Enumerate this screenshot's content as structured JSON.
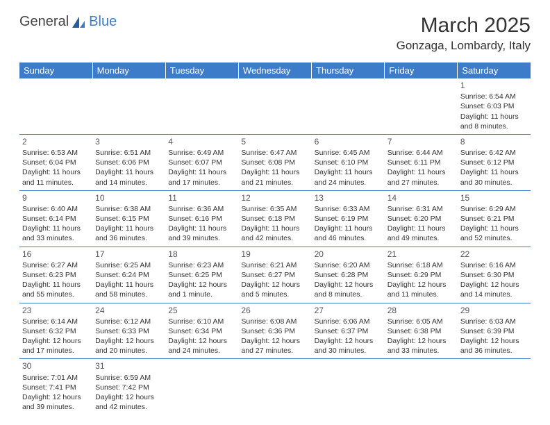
{
  "logo": {
    "word1": "General",
    "word2": "Blue"
  },
  "title": "March 2025",
  "location": "Gonzaga, Lombardy, Italy",
  "colors": {
    "header_bg": "#3d7cc9",
    "header_fg": "#ffffff",
    "cell_border": "#3d7cc9",
    "empty_bg": "#f2f2f2",
    "text": "#333333",
    "logo_blue": "#3d7cc9"
  },
  "weekdays": [
    "Sunday",
    "Monday",
    "Tuesday",
    "Wednesday",
    "Thursday",
    "Friday",
    "Saturday"
  ],
  "days": {
    "1": {
      "sunrise": "6:54 AM",
      "sunset": "6:03 PM",
      "daylight": "11 hours and 8 minutes."
    },
    "2": {
      "sunrise": "6:53 AM",
      "sunset": "6:04 PM",
      "daylight": "11 hours and 11 minutes."
    },
    "3": {
      "sunrise": "6:51 AM",
      "sunset": "6:06 PM",
      "daylight": "11 hours and 14 minutes."
    },
    "4": {
      "sunrise": "6:49 AM",
      "sunset": "6:07 PM",
      "daylight": "11 hours and 17 minutes."
    },
    "5": {
      "sunrise": "6:47 AM",
      "sunset": "6:08 PM",
      "daylight": "11 hours and 21 minutes."
    },
    "6": {
      "sunrise": "6:45 AM",
      "sunset": "6:10 PM",
      "daylight": "11 hours and 24 minutes."
    },
    "7": {
      "sunrise": "6:44 AM",
      "sunset": "6:11 PM",
      "daylight": "11 hours and 27 minutes."
    },
    "8": {
      "sunrise": "6:42 AM",
      "sunset": "6:12 PM",
      "daylight": "11 hours and 30 minutes."
    },
    "9": {
      "sunrise": "6:40 AM",
      "sunset": "6:14 PM",
      "daylight": "11 hours and 33 minutes."
    },
    "10": {
      "sunrise": "6:38 AM",
      "sunset": "6:15 PM",
      "daylight": "11 hours and 36 minutes."
    },
    "11": {
      "sunrise": "6:36 AM",
      "sunset": "6:16 PM",
      "daylight": "11 hours and 39 minutes."
    },
    "12": {
      "sunrise": "6:35 AM",
      "sunset": "6:18 PM",
      "daylight": "11 hours and 42 minutes."
    },
    "13": {
      "sunrise": "6:33 AM",
      "sunset": "6:19 PM",
      "daylight": "11 hours and 46 minutes."
    },
    "14": {
      "sunrise": "6:31 AM",
      "sunset": "6:20 PM",
      "daylight": "11 hours and 49 minutes."
    },
    "15": {
      "sunrise": "6:29 AM",
      "sunset": "6:21 PM",
      "daylight": "11 hours and 52 minutes."
    },
    "16": {
      "sunrise": "6:27 AM",
      "sunset": "6:23 PM",
      "daylight": "11 hours and 55 minutes."
    },
    "17": {
      "sunrise": "6:25 AM",
      "sunset": "6:24 PM",
      "daylight": "11 hours and 58 minutes."
    },
    "18": {
      "sunrise": "6:23 AM",
      "sunset": "6:25 PM",
      "daylight": "12 hours and 1 minute."
    },
    "19": {
      "sunrise": "6:21 AM",
      "sunset": "6:27 PM",
      "daylight": "12 hours and 5 minutes."
    },
    "20": {
      "sunrise": "6:20 AM",
      "sunset": "6:28 PM",
      "daylight": "12 hours and 8 minutes."
    },
    "21": {
      "sunrise": "6:18 AM",
      "sunset": "6:29 PM",
      "daylight": "12 hours and 11 minutes."
    },
    "22": {
      "sunrise": "6:16 AM",
      "sunset": "6:30 PM",
      "daylight": "12 hours and 14 minutes."
    },
    "23": {
      "sunrise": "6:14 AM",
      "sunset": "6:32 PM",
      "daylight": "12 hours and 17 minutes."
    },
    "24": {
      "sunrise": "6:12 AM",
      "sunset": "6:33 PM",
      "daylight": "12 hours and 20 minutes."
    },
    "25": {
      "sunrise": "6:10 AM",
      "sunset": "6:34 PM",
      "daylight": "12 hours and 24 minutes."
    },
    "26": {
      "sunrise": "6:08 AM",
      "sunset": "6:36 PM",
      "daylight": "12 hours and 27 minutes."
    },
    "27": {
      "sunrise": "6:06 AM",
      "sunset": "6:37 PM",
      "daylight": "12 hours and 30 minutes."
    },
    "28": {
      "sunrise": "6:05 AM",
      "sunset": "6:38 PM",
      "daylight": "12 hours and 33 minutes."
    },
    "29": {
      "sunrise": "6:03 AM",
      "sunset": "6:39 PM",
      "daylight": "12 hours and 36 minutes."
    },
    "30": {
      "sunrise": "7:01 AM",
      "sunset": "7:41 PM",
      "daylight": "12 hours and 39 minutes."
    },
    "31": {
      "sunrise": "6:59 AM",
      "sunset": "7:42 PM",
      "daylight": "12 hours and 42 minutes."
    }
  },
  "grid": [
    [
      null,
      null,
      null,
      null,
      null,
      null,
      "1"
    ],
    [
      "2",
      "3",
      "4",
      "5",
      "6",
      "7",
      "8"
    ],
    [
      "9",
      "10",
      "11",
      "12",
      "13",
      "14",
      "15"
    ],
    [
      "16",
      "17",
      "18",
      "19",
      "20",
      "21",
      "22"
    ],
    [
      "23",
      "24",
      "25",
      "26",
      "27",
      "28",
      "29"
    ],
    [
      "30",
      "31",
      null,
      null,
      null,
      null,
      null
    ]
  ],
  "labels": {
    "sunrise_prefix": "Sunrise: ",
    "sunset_prefix": "Sunset: ",
    "daylight_prefix": "Daylight: "
  }
}
